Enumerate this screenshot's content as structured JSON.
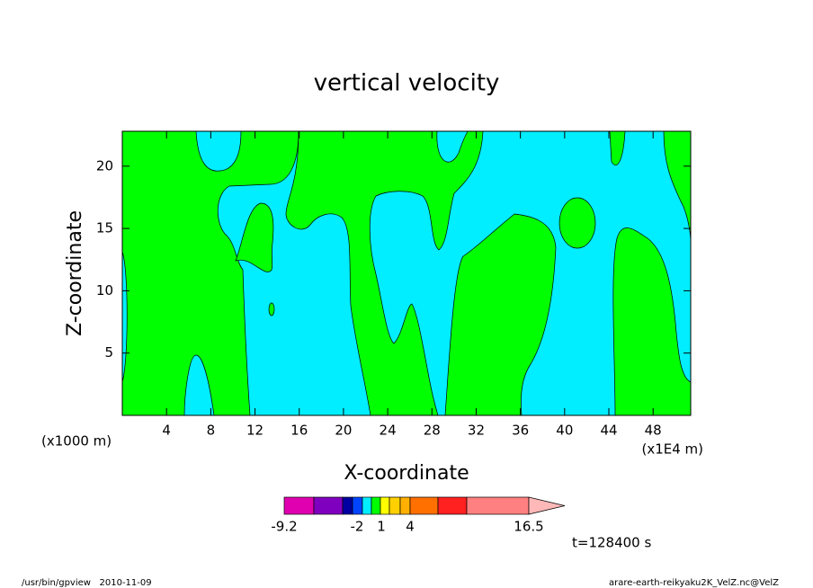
{
  "chart_data": {
    "type": "contour",
    "title": "vertical velocity",
    "x_label": "X-coordinate",
    "y_label": "Z-coordinate",
    "x_unit_note": "(x1000 m)",
    "x_scale_note": "(x1E4 m)",
    "time_label": "t=128400 s",
    "footer_left": "/usr/bin/gpview   2010-11-09",
    "footer_right": "arare-earth-reikyaku2K_VelZ.nc@VelZ",
    "xlim": [
      0,
      51.4
    ],
    "xticks": [
      4,
      8,
      12,
      16,
      20,
      24,
      28,
      32,
      36,
      40,
      44,
      48
    ],
    "ylim": [
      0,
      22.8
    ],
    "yticks": [
      5,
      10,
      15,
      20
    ],
    "colorbar": {
      "colors": [
        "#e000b0",
        "#8000c0",
        "#0000a0",
        "#0044ff",
        "#00eeff",
        "#00ff00",
        "#ffff00",
        "#ffd000",
        "#ffb000",
        "#ff7000",
        "#ff2020",
        "#ff8080",
        "#ffb8b8"
      ],
      "ticks": [
        -9.2,
        -2,
        1,
        4,
        16.5
      ]
    }
  }
}
